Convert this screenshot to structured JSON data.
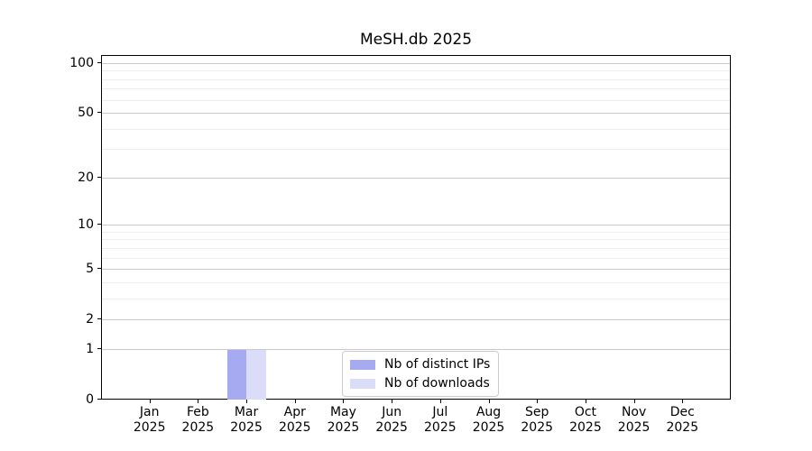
{
  "chart_data": {
    "type": "bar",
    "title": "MeSH.db 2025",
    "x_axis": {
      "categories": [
        "Jan",
        "Feb",
        "Mar",
        "Apr",
        "May",
        "Jun",
        "Jul",
        "Aug",
        "Sep",
        "Oct",
        "Nov",
        "Dec"
      ],
      "year": "2025"
    },
    "y_axis": {
      "scale": "log1p",
      "major_ticks": [
        0,
        1,
        2,
        5,
        10,
        20,
        50,
        100
      ],
      "minor_gridlines": [
        3,
        4,
        6,
        7,
        8,
        9,
        30,
        40,
        60,
        70,
        80,
        90
      ],
      "top_value": 110
    },
    "series": [
      {
        "name": "Nb of distinct IPs",
        "color": "#a5aaf1",
        "values": [
          0,
          0,
          1,
          0,
          0,
          0,
          0,
          0,
          0,
          0,
          0,
          0
        ]
      },
      {
        "name": "Nb of downloads",
        "color": "#dadcf8",
        "values": [
          0,
          0,
          1,
          0,
          0,
          0,
          0,
          0,
          0,
          0,
          0,
          0
        ]
      }
    ],
    "legend": {
      "position": "lower center inside",
      "entries": [
        "Nb of distinct IPs",
        "Nb of downloads"
      ]
    },
    "grid": {
      "major_color": "#c9c9c9",
      "minor_color": "#ededed"
    }
  }
}
